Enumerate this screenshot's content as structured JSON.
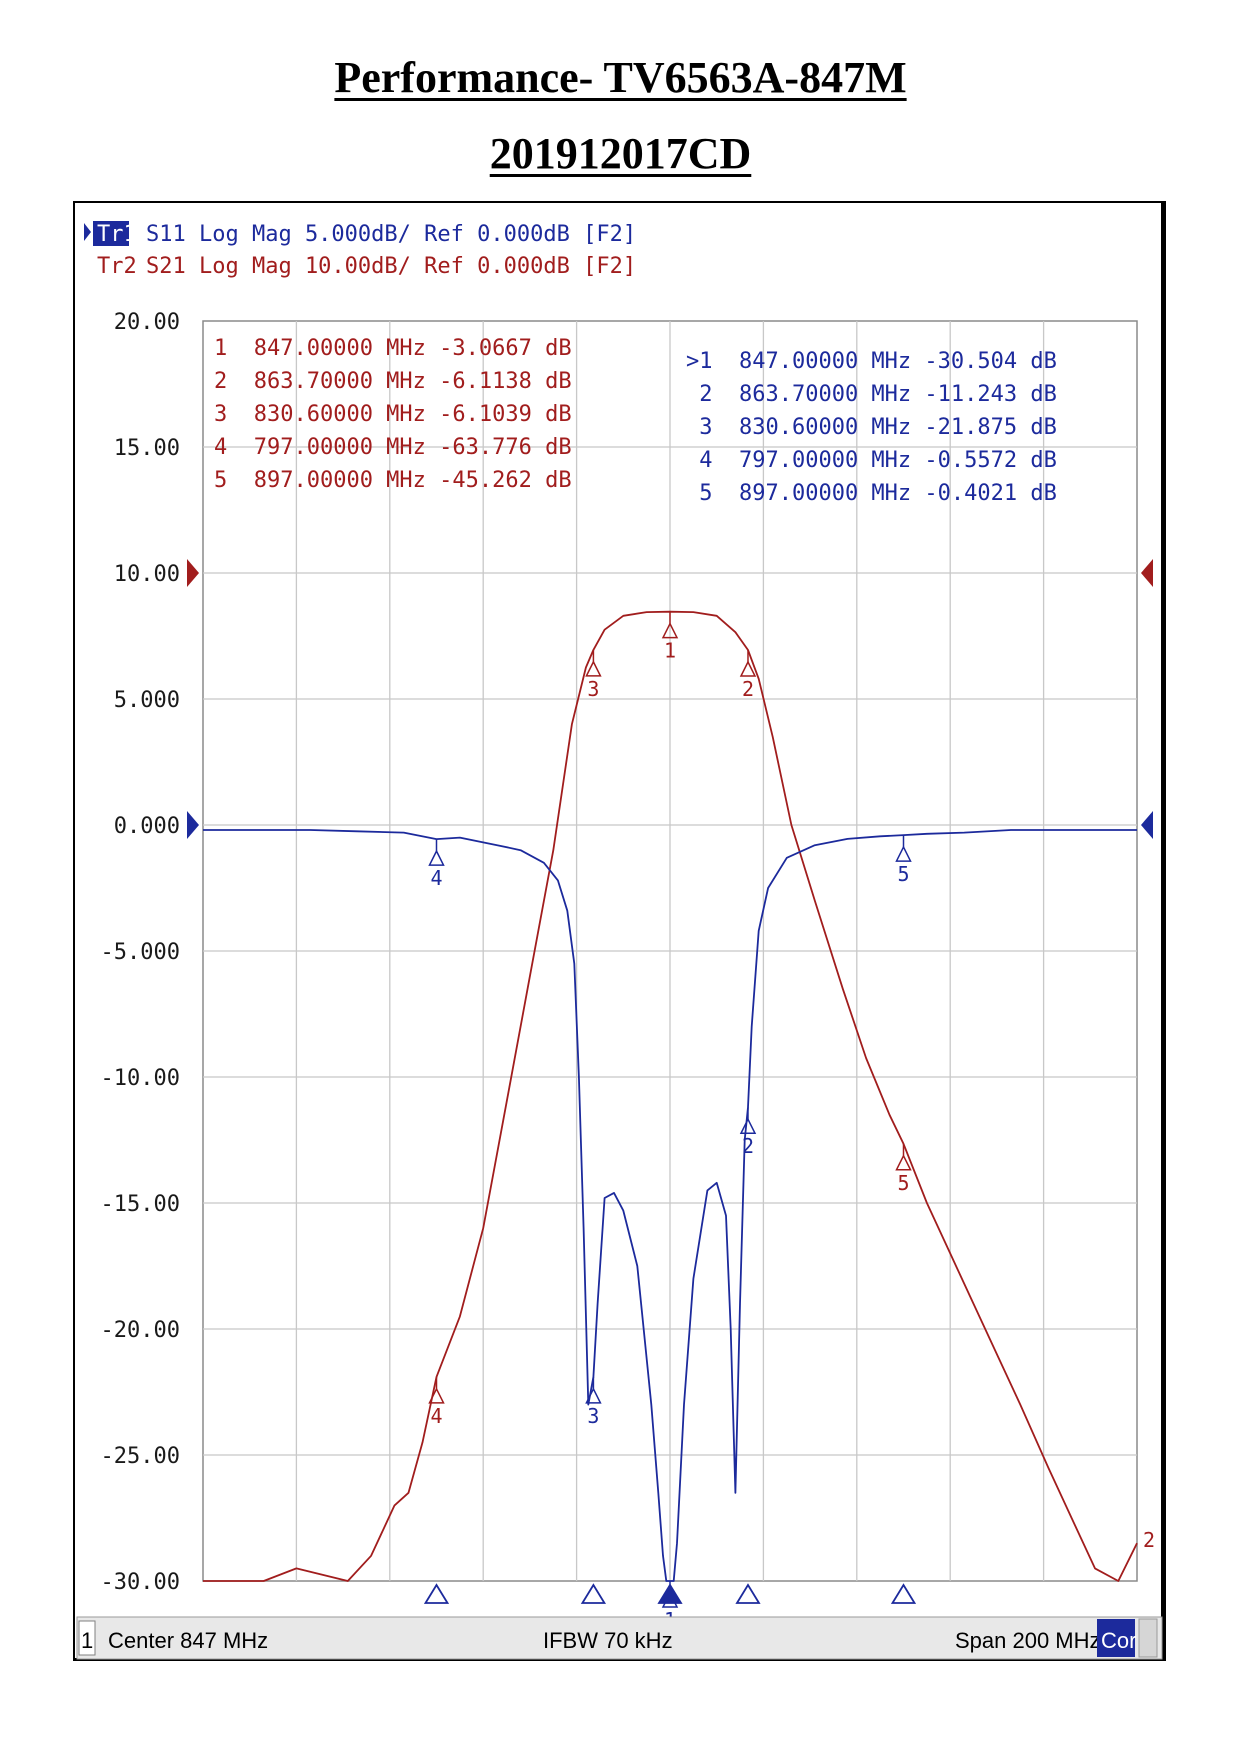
{
  "page": {
    "title": "Performance- TV6563A-847M",
    "subtitle": "201912017CD"
  },
  "traces": {
    "tr1": {
      "tag": "Tr1",
      "text": "S11 Log Mag 5.000dB/ Ref 0.000dB [F2]",
      "color": "#1c2a9c"
    },
    "tr2": {
      "tag": "Tr2",
      "text": "S21 Log Mag 10.00dB/ Ref 0.000dB [F2]",
      "color": "#a11d1d"
    }
  },
  "status_bar": {
    "channel": "1",
    "center": "Center 847 MHz",
    "ifbw": "IFBW 70 kHz",
    "span": "Span 200 MHz",
    "cor": "Cor"
  },
  "marker_tables": {
    "s21": [
      "1  847.00000 MHz -3.0667 dB",
      "2  863.70000 MHz -6.1138 dB",
      "3  830.60000 MHz -6.1039 dB",
      "4  797.00000 MHz -63.776 dB",
      "5  897.00000 MHz -45.262 dB"
    ],
    "s11": [
      ">1  847.00000 MHz -30.504 dB",
      " 2  863.70000 MHz -11.243 dB",
      " 3  830.60000 MHz -21.875 dB",
      " 4  797.00000 MHz -0.5572 dB",
      " 5  897.00000 MHz -0.4021 dB"
    ]
  },
  "chart_data": {
    "type": "line",
    "xlabel": "",
    "ylabel": "",
    "x_range_mhz": [
      747,
      947
    ],
    "y_range_grid": [
      -30,
      20
    ],
    "y_ticks": [
      "20.00",
      "15.00",
      "10.00",
      "5.000",
      "0.000",
      "-5.000",
      "-10.00",
      "-15.00",
      "-20.00",
      "-25.00",
      "-30.00"
    ],
    "grid": true,
    "series": [
      {
        "name": "S21",
        "scale_db_per_div": 10,
        "ref_level_db": 0,
        "ref_position_grid": 10,
        "color": "#a11d1d",
        "x_mhz": [
          747,
          760,
          767,
          778,
          783,
          788,
          791,
          794,
          797,
          802,
          807,
          812,
          817,
          822,
          826,
          829,
          830.6,
          833,
          837,
          842,
          847,
          852,
          857,
          861,
          863.7,
          866,
          869,
          873,
          878,
          884,
          889,
          894,
          897,
          902,
          907,
          912,
          917,
          922,
          928,
          933,
          938,
          943,
          947
        ],
        "y_db": [
          -81,
          -80,
          -79,
          -80,
          -78,
          -74,
          -73,
          -69,
          -63.8,
          -59,
          -52,
          -42,
          -32,
          -22,
          -12,
          -7.5,
          -6.1,
          -4.5,
          -3.4,
          -3.1,
          -3.07,
          -3.1,
          -3.4,
          -4.7,
          -6.11,
          -8.4,
          -13,
          -20,
          -26,
          -33,
          -38.5,
          -43,
          -45.3,
          -50,
          -54,
          -58,
          -62,
          -66,
          -71,
          -75,
          -79,
          -81,
          -77
        ]
      },
      {
        "name": "S11",
        "scale_db_per_div": 5,
        "ref_level_db": 0,
        "ref_position_grid": 0,
        "color": "#1c2a9c",
        "x_mhz": [
          747,
          760,
          770,
          780,
          790,
          797,
          802,
          810,
          815,
          820,
          823,
          825,
          826.5,
          827.5,
          828.5,
          829.5,
          830.6,
          831.5,
          833,
          835,
          837,
          840,
          843,
          844.5,
          845.5,
          846.2,
          847,
          847.8,
          848.5,
          850,
          852,
          855,
          857,
          859,
          860,
          861,
          862,
          863,
          863.7,
          864.5,
          866,
          868,
          872,
          878,
          885,
          892,
          897,
          902,
          910,
          920,
          930,
          940,
          947
        ],
        "y_db": [
          -0.2,
          -0.2,
          -0.2,
          -0.25,
          -0.3,
          -0.56,
          -0.5,
          -0.8,
          -1.0,
          -1.5,
          -2.2,
          -3.4,
          -5.5,
          -10,
          -16,
          -23,
          -21.9,
          -19,
          -14.8,
          -14.6,
          -15.3,
          -17.5,
          -23,
          -26.5,
          -29,
          -30,
          -30.5,
          -30,
          -28.5,
          -23,
          -18,
          -14.5,
          -14.2,
          -15.5,
          -20,
          -26.5,
          -19,
          -12.5,
          -11.2,
          -8,
          -4.2,
          -2.5,
          -1.3,
          -0.8,
          -0.55,
          -0.45,
          -0.4,
          -0.35,
          -0.3,
          -0.2,
          -0.2,
          -0.2,
          -0.2
        ]
      }
    ],
    "markers": {
      "S21": [
        {
          "id": "1",
          "x_mhz": 847.0,
          "y_db": -3.0667
        },
        {
          "id": "2",
          "x_mhz": 863.7,
          "y_db": -6.1138
        },
        {
          "id": "3",
          "x_mhz": 830.6,
          "y_db": -6.1039
        },
        {
          "id": "4",
          "x_mhz": 797.0,
          "y_db": -63.776
        },
        {
          "id": "5",
          "x_mhz": 897.0,
          "y_db": -45.262
        }
      ],
      "S11": [
        {
          "id": "1",
          "x_mhz": 847.0,
          "y_db": -30.504
        },
        {
          "id": "2",
          "x_mhz": 863.7,
          "y_db": -11.243
        },
        {
          "id": "3",
          "x_mhz": 830.6,
          "y_db": -21.875
        },
        {
          "id": "4",
          "x_mhz": 797.0,
          "y_db": -0.5572
        },
        {
          "id": "5",
          "x_mhz": 897.0,
          "y_db": -0.4021
        }
      ]
    }
  }
}
